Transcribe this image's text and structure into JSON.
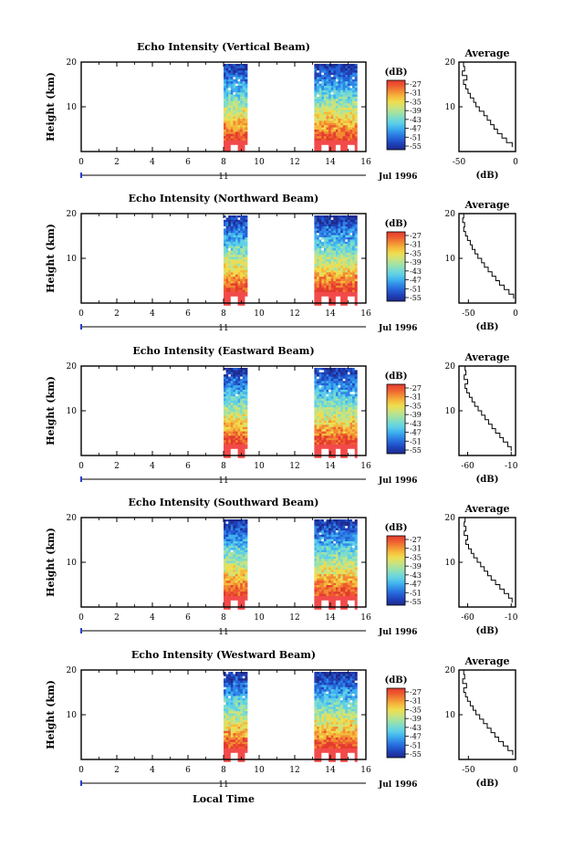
{
  "colors": {
    "palette": [
      "#1e2a8c",
      "#1f3fb5",
      "#2460d6",
      "#2f86e6",
      "#3fb1ef",
      "#5fd0e6",
      "#7fdcc8",
      "#a6e3a0",
      "#cfe37a",
      "#f0dc4e",
      "#f5b93c",
      "#f28a33",
      "#ee5a30",
      "#e43b2f",
      "#f24a4a"
    ],
    "surface_red": "#f24a4a"
  },
  "x_axis_label": "Local Time",
  "chart_data": [
    {
      "type": "heatmap",
      "title": "Echo Intensity (Vertical Beam)",
      "ylabel": "Height (km)",
      "ylim": [
        0,
        20
      ],
      "yticks": [
        10,
        20
      ],
      "xlim": [
        0,
        16
      ],
      "xticks": [
        "0",
        "2",
        "4",
        "6",
        "8",
        "10",
        "12",
        "14",
        "16"
      ],
      "date_label": "11",
      "month_label": "Jul 1996",
      "data_intervals": [
        [
          8.0,
          9.3
        ],
        [
          13.1,
          15.4
        ]
      ],
      "colorbar": {
        "label": "(dB)",
        "ticks": [
          "-27",
          "-31",
          "-35",
          "-39",
          "-43",
          "-47",
          "-51",
          "-55"
        ]
      },
      "average": {
        "title": "Average",
        "xlabel": "(dB)",
        "xlim": [
          -50,
          0
        ],
        "xticks": [
          "-50",
          "0"
        ],
        "yticks": [
          "10",
          "20"
        ],
        "heights": [
          2,
          3,
          4,
          5,
          6,
          7,
          8,
          9,
          10,
          11,
          12,
          13,
          14,
          15,
          16,
          17,
          18,
          19,
          20
        ],
        "values": [
          -3,
          -8,
          -12,
          -16,
          -19,
          -22,
          -25,
          -28,
          -32,
          -35,
          -37,
          -40,
          -42,
          -44,
          -46,
          -43,
          -47,
          -45,
          -46
        ]
      }
    },
    {
      "type": "heatmap",
      "title": "Echo Intensity (Northward Beam)",
      "ylabel": "Height (km)",
      "ylim": [
        0,
        20
      ],
      "yticks": [
        10,
        20
      ],
      "xlim": [
        0,
        16
      ],
      "xticks": [
        "0",
        "2",
        "4",
        "6",
        "8",
        "10",
        "12",
        "14",
        "16"
      ],
      "date_label": "11",
      "month_label": "Jul 1996",
      "data_intervals": [
        [
          8.0,
          9.3
        ],
        [
          13.1,
          15.4
        ]
      ],
      "colorbar": {
        "label": "(dB)",
        "ticks": [
          "-27",
          "-31",
          "-35",
          "-39",
          "-43",
          "-47",
          "-51",
          "-55"
        ]
      },
      "average": {
        "title": "Average",
        "xlabel": "(dB)",
        "xlim": [
          -60,
          0
        ],
        "xticks": [
          "-50",
          "0"
        ],
        "yticks": [
          "10",
          "20"
        ],
        "heights": [
          2,
          3,
          4,
          5,
          6,
          7,
          8,
          9,
          10,
          11,
          12,
          13,
          14,
          15,
          16,
          17,
          18,
          19,
          20
        ],
        "values": [
          -2,
          -7,
          -12,
          -17,
          -21,
          -25,
          -29,
          -33,
          -36,
          -40,
          -43,
          -46,
          -48,
          -51,
          -53,
          -55,
          -54,
          -56,
          -55
        ]
      }
    },
    {
      "type": "heatmap",
      "title": "Echo Intensity (Eastward Beam)",
      "ylabel": "Height (km)",
      "ylim": [
        0,
        20
      ],
      "yticks": [
        10,
        20
      ],
      "xlim": [
        0,
        16
      ],
      "xticks": [
        "0",
        "2",
        "4",
        "6",
        "8",
        "10",
        "12",
        "14",
        "16"
      ],
      "date_label": "11",
      "month_label": "Jul 1996",
      "data_intervals": [
        [
          8.0,
          9.3
        ],
        [
          13.1,
          15.4
        ]
      ],
      "colorbar": {
        "label": "(dB)",
        "ticks": [
          "-27",
          "-31",
          "-35",
          "-39",
          "-43",
          "-47",
          "-51",
          "-55"
        ]
      },
      "average": {
        "title": "Average",
        "xlabel": "(dB)",
        "xlim": [
          -70,
          -5
        ],
        "xticks": [
          "-60",
          "-10"
        ],
        "yticks": [
          "10",
          "20"
        ],
        "heights": [
          2,
          3,
          4,
          5,
          6,
          7,
          8,
          9,
          10,
          11,
          12,
          13,
          14,
          15,
          16,
          17,
          18,
          19,
          20
        ],
        "values": [
          -10,
          -14,
          -19,
          -23,
          -28,
          -32,
          -36,
          -40,
          -44,
          -48,
          -52,
          -55,
          -58,
          -61,
          -63,
          -60,
          -64,
          -62,
          -63
        ]
      }
    },
    {
      "type": "heatmap",
      "title": "Echo Intensity (Southward Beam)",
      "ylabel": "Height (km)",
      "ylim": [
        0,
        20
      ],
      "yticks": [
        10,
        20
      ],
      "xlim": [
        0,
        16
      ],
      "xticks": [
        "0",
        "2",
        "4",
        "6",
        "8",
        "10",
        "12",
        "14",
        "16"
      ],
      "date_label": "11",
      "month_label": "Jul 1996",
      "data_intervals": [
        [
          8.0,
          9.3
        ],
        [
          13.1,
          15.4
        ]
      ],
      "colorbar": {
        "label": "(dB)",
        "ticks": [
          "-27",
          "-31",
          "-35",
          "-39",
          "-43",
          "-47",
          "-51",
          "-55"
        ]
      },
      "average": {
        "title": "Average",
        "xlabel": "(dB)",
        "xlim": [
          -70,
          -5
        ],
        "xticks": [
          "-60",
          "-10"
        ],
        "yticks": [
          "10",
          "20"
        ],
        "heights": [
          2,
          3,
          4,
          5,
          6,
          7,
          8,
          9,
          10,
          11,
          12,
          13,
          14,
          15,
          16,
          17,
          18,
          19,
          20
        ],
        "values": [
          -9,
          -13,
          -18,
          -23,
          -28,
          -33,
          -37,
          -41,
          -45,
          -49,
          -53,
          -56,
          -59,
          -62,
          -60,
          -64,
          -62,
          -64,
          -63
        ]
      }
    },
    {
      "type": "heatmap",
      "title": "Echo Intensity (Westward Beam)",
      "ylabel": "Height (km)",
      "ylim": [
        0,
        20
      ],
      "yticks": [
        10,
        20
      ],
      "xlim": [
        0,
        16
      ],
      "xticks": [
        "0",
        "2",
        "4",
        "6",
        "8",
        "10",
        "12",
        "14",
        "16"
      ],
      "date_label": "11",
      "month_label": "Jul 1996",
      "data_intervals": [
        [
          8.0,
          9.3
        ],
        [
          13.1,
          15.4
        ]
      ],
      "colorbar": {
        "label": "(dB)",
        "ticks": [
          "-27",
          "-31",
          "-35",
          "-39",
          "-43",
          "-47",
          "-51",
          "-55"
        ]
      },
      "average": {
        "title": "Average",
        "xlabel": "(dB)",
        "xlim": [
          -60,
          0
        ],
        "xticks": [
          "-50",
          "0"
        ],
        "yticks": [
          "10",
          "20"
        ],
        "heights": [
          2,
          3,
          4,
          5,
          6,
          7,
          8,
          9,
          10,
          11,
          12,
          13,
          14,
          15,
          16,
          17,
          18,
          19,
          20
        ],
        "values": [
          -3,
          -8,
          -13,
          -18,
          -22,
          -26,
          -30,
          -34,
          -38,
          -42,
          -45,
          -48,
          -51,
          -53,
          -55,
          -52,
          -56,
          -54,
          -55
        ]
      }
    }
  ]
}
